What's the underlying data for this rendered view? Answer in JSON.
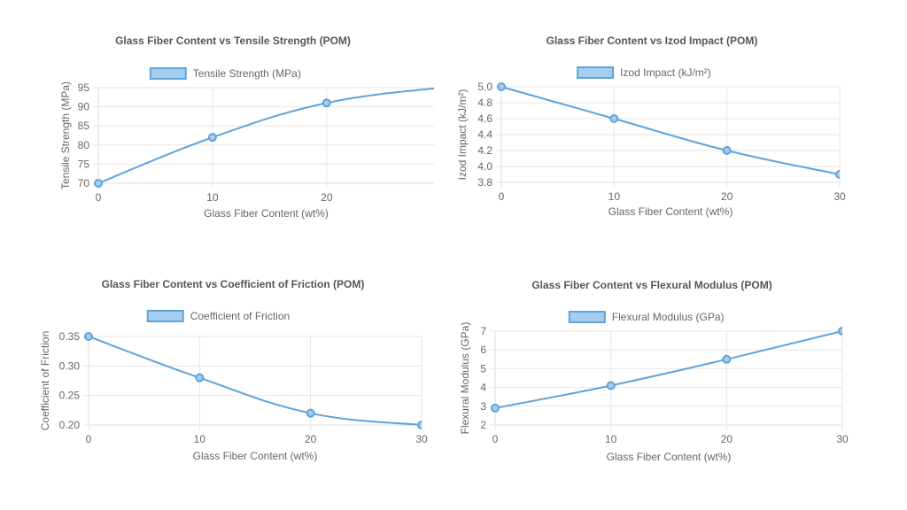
{
  "colors": {
    "line": "#5fa3d8",
    "legend_fill": "#a6cdf0",
    "grid": "#e6e6e6"
  },
  "chart_data": [
    {
      "type": "line",
      "title": "Glass Fiber Content vs Tensile Strength (POM)",
      "xlabel": "Glass Fiber Content (wt%)",
      "ylabel": "Tensile Strength (MPa)",
      "x": [
        0,
        10,
        20,
        30
      ],
      "xticks": [
        "0",
        "10",
        "20"
      ],
      "xlim": [
        0,
        29.4
      ],
      "ylim": [
        70,
        95
      ],
      "yticks": [
        "70",
        "75",
        "80",
        "85",
        "90",
        "95"
      ],
      "series": [
        {
          "name": "Tensile Strength (MPa)",
          "values": [
            70,
            82,
            91,
            95
          ]
        }
      ],
      "legend": "top",
      "grid": true
    },
    {
      "type": "line",
      "title": "Glass Fiber Content vs Izod Impact (POM)",
      "xlabel": "Glass Fiber Content (wt%)",
      "ylabel": "Izod Impact (kJ/m²)",
      "x": [
        0,
        10,
        20,
        30
      ],
      "xticks": [
        "0",
        "10",
        "20",
        "30"
      ],
      "xlim": [
        0,
        30
      ],
      "ylim": [
        3.8,
        5.0
      ],
      "yticks": [
        "3.8",
        "4.0",
        "4.2",
        "4.4",
        "4.6",
        "4.8",
        "5.0"
      ],
      "series": [
        {
          "name": "Izod Impact (kJ/m²)",
          "values": [
            5.0,
            4.6,
            4.2,
            3.9
          ]
        }
      ],
      "legend": "top",
      "grid": true
    },
    {
      "type": "line",
      "title": "Glass Fiber Content vs Coefficient of Friction (POM)",
      "xlabel": "Glass Fiber Content (wt%)",
      "ylabel": "Coefficient of Friction",
      "x": [
        0,
        10,
        20,
        30
      ],
      "xticks": [
        "0",
        "10",
        "20",
        "30"
      ],
      "xlim": [
        0,
        30
      ],
      "ylim": [
        0.2,
        0.35
      ],
      "yticks": [
        "0.20",
        "0.25",
        "0.30",
        "0.35"
      ],
      "series": [
        {
          "name": "Coefficient of Friction",
          "values": [
            0.35,
            0.28,
            0.22,
            0.2
          ]
        }
      ],
      "legend": "top",
      "grid": true
    },
    {
      "type": "line",
      "title": "Glass Fiber Content vs Flexural Modulus (POM)",
      "xlabel": "Glass Fiber Content (wt%)",
      "ylabel": "Flexural Modulus (GPa)",
      "x": [
        0,
        10,
        20,
        30
      ],
      "xticks": [
        "0",
        "10",
        "20",
        "30"
      ],
      "xlim": [
        0,
        30
      ],
      "ylim": [
        2,
        7
      ],
      "yticks": [
        "2",
        "3",
        "4",
        "5",
        "6",
        "7"
      ],
      "series": [
        {
          "name": "Flexural Modulus (GPa)",
          "values": [
            2.9,
            4.1,
            5.5,
            7.0
          ]
        }
      ],
      "legend": "top",
      "grid": true
    }
  ]
}
